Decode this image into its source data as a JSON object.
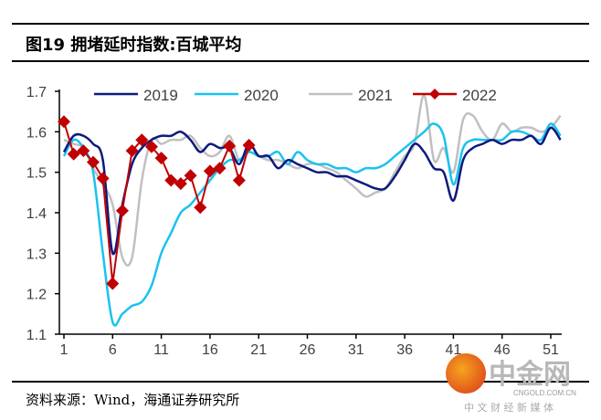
{
  "title": "图19 拥堵延时指数:百城平均",
  "source": "资料来源：Wind，海通证券研究所",
  "watermark": {
    "brand": "中金网",
    "domain": "CNGOLD.COM.CN",
    "tagline": "中 文 财 经 新 媒 体"
  },
  "chart_data": {
    "type": "line",
    "title": "图19 拥堵延时指数:百城平均",
    "xlabel": "",
    "ylabel": "",
    "xlim": [
      1,
      52
    ],
    "ylim": [
      1.1,
      1.7
    ],
    "yticks": [
      "1.1",
      "1.2",
      "1.3",
      "1.4",
      "1.5",
      "1.6",
      "1.7"
    ],
    "xticks": [
      "1",
      "6",
      "11",
      "16",
      "21",
      "26",
      "31",
      "36",
      "41",
      "46",
      "51"
    ],
    "legend_position": "top",
    "grid": false,
    "series": [
      {
        "name": "2019",
        "color": "#0d1a7c",
        "marker": false,
        "values": [
          1.55,
          1.59,
          1.59,
          1.57,
          1.53,
          1.3,
          1.42,
          1.52,
          1.56,
          1.58,
          1.59,
          1.59,
          1.6,
          1.58,
          1.55,
          1.57,
          1.56,
          1.56,
          1.52,
          1.57,
          1.54,
          1.54,
          1.51,
          1.53,
          1.52,
          1.51,
          1.5,
          1.5,
          1.49,
          1.49,
          1.48,
          1.47,
          1.46,
          1.46,
          1.49,
          1.53,
          1.57,
          1.55,
          1.51,
          1.5,
          1.43,
          1.53,
          1.56,
          1.57,
          1.58,
          1.57,
          1.58,
          1.58,
          1.59,
          1.57,
          1.61,
          1.58
        ]
      },
      {
        "name": "2020",
        "color": "#19c3f0",
        "marker": false,
        "values": [
          1.54,
          1.58,
          1.56,
          1.5,
          1.3,
          1.13,
          1.15,
          1.17,
          1.18,
          1.22,
          1.3,
          1.35,
          1.4,
          1.42,
          1.45,
          1.48,
          1.51,
          1.53,
          1.53,
          1.55,
          1.54,
          1.54,
          1.55,
          1.52,
          1.55,
          1.53,
          1.52,
          1.52,
          1.51,
          1.51,
          1.5,
          1.51,
          1.51,
          1.52,
          1.54,
          1.56,
          1.58,
          1.6,
          1.62,
          1.59,
          1.47,
          1.56,
          1.58,
          1.58,
          1.58,
          1.58,
          1.6,
          1.6,
          1.59,
          1.58,
          1.62,
          1.59
        ]
      },
      {
        "name": "2021",
        "color": "#c0c0c0",
        "marker": false,
        "values": [
          1.58,
          1.57,
          1.56,
          1.51,
          1.47,
          1.42,
          1.29,
          1.29,
          1.48,
          1.58,
          1.57,
          1.58,
          1.58,
          1.59,
          1.56,
          1.54,
          1.55,
          1.59,
          1.53,
          1.55,
          1.54,
          1.53,
          1.53,
          1.52,
          1.51,
          1.52,
          1.52,
          1.51,
          1.5,
          1.48,
          1.46,
          1.44,
          1.45,
          1.46,
          1.5,
          1.54,
          1.57,
          1.69,
          1.53,
          1.56,
          1.5,
          1.63,
          1.64,
          1.6,
          1.58,
          1.62,
          1.6,
          1.61,
          1.61,
          1.6,
          1.61,
          1.64
        ]
      },
      {
        "name": "2022",
        "color": "#c00000",
        "marker": true,
        "values": [
          1.625,
          1.545,
          1.553,
          1.525,
          1.485,
          1.225,
          1.405,
          1.553,
          1.58,
          1.563,
          1.535,
          1.48,
          1.472,
          1.492,
          1.413,
          1.503,
          1.51,
          1.565,
          1.48,
          1.567
        ]
      }
    ]
  }
}
